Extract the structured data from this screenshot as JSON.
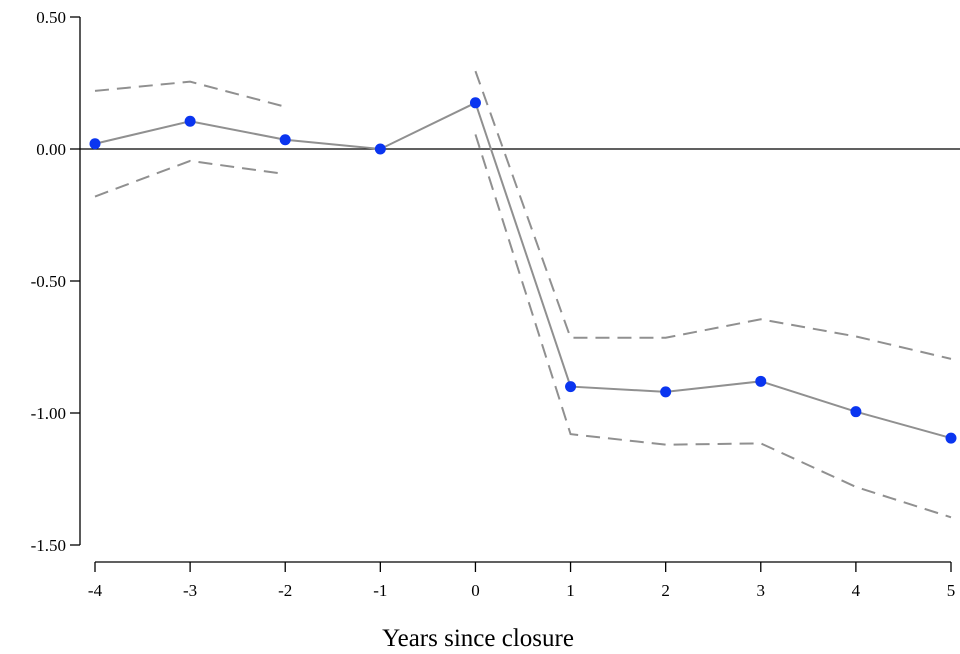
{
  "chart_data": {
    "type": "line",
    "title": "",
    "xlabel": "Years since closure",
    "ylabel": "",
    "x": [
      -4,
      -3,
      -2,
      -1,
      0,
      1,
      2,
      3,
      4,
      5
    ],
    "xlim": [
      -4,
      5
    ],
    "ylim": [
      -1.5,
      0.5
    ],
    "x_ticks": [
      "-4",
      "-3",
      "-2",
      "-1",
      "0",
      "1",
      "2",
      "3",
      "4",
      "5"
    ],
    "y_ticks": [
      {
        "value": 0.5,
        "label": "0.50"
      },
      {
        "value": 0.0,
        "label": "0.00"
      },
      {
        "value": -0.5,
        "label": "-0.50"
      },
      {
        "value": -1.0,
        "label": "-1.00"
      },
      {
        "value": -1.5,
        "label": "-1.50"
      }
    ],
    "reference_line": 0,
    "grid": false,
    "legend": "none",
    "series": [
      {
        "role": "estimate",
        "x": [
          -4,
          -3,
          -2,
          -1,
          0,
          1,
          2,
          3,
          4,
          5
        ],
        "values": [
          0.02,
          0.105,
          0.035,
          0.0,
          0.175,
          -0.9,
          -0.92,
          -0.88,
          -0.995,
          -1.095
        ],
        "line_color": "#909090",
        "marker_color": "#0a35f0",
        "style": "solid"
      },
      {
        "role": "upper_ci",
        "segments": [
          {
            "x": [
              -4,
              -3,
              -2
            ],
            "values": [
              0.22,
              0.255,
              0.16
            ]
          },
          {
            "x": [
              0,
              1,
              2,
              3,
              4,
              5
            ],
            "values": [
              0.295,
              -0.715,
              -0.715,
              -0.645,
              -0.71,
              -0.795
            ]
          }
        ],
        "line_color": "#909090",
        "style": "dashed"
      },
      {
        "role": "lower_ci",
        "segments": [
          {
            "x": [
              -4,
              -3,
              -2
            ],
            "values": [
              -0.18,
              -0.045,
              -0.095
            ]
          },
          {
            "x": [
              0,
              1,
              2,
              3,
              4,
              5
            ],
            "values": [
              0.055,
              -1.08,
              -1.12,
              -1.115,
              -1.28,
              -1.395
            ]
          }
        ],
        "line_color": "#909090",
        "style": "dashed"
      }
    ]
  }
}
